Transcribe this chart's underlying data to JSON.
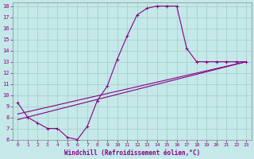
{
  "xlabel": "Windchill (Refroidissement éolien,°C)",
  "bg_color": "#c5e8e8",
  "grid_color": "#a8d0d0",
  "line_color": "#880088",
  "xlim": [
    -0.5,
    23.5
  ],
  "ylim": [
    6,
    18.3
  ],
  "xticks": [
    0,
    1,
    2,
    3,
    4,
    5,
    6,
    7,
    8,
    9,
    10,
    11,
    12,
    13,
    14,
    15,
    16,
    17,
    18,
    19,
    20,
    21,
    22,
    23
  ],
  "yticks": [
    6,
    7,
    8,
    9,
    10,
    11,
    12,
    13,
    14,
    15,
    16,
    17,
    18
  ],
  "curve1_x": [
    0,
    1,
    2,
    3,
    4,
    5,
    6,
    7,
    8,
    9,
    10,
    11,
    12,
    13,
    14,
    15,
    16,
    17,
    18,
    19,
    20,
    21,
    22,
    23
  ],
  "curve1_y": [
    9.3,
    8.0,
    7.5,
    7.0,
    7.0,
    6.2,
    6.0,
    7.2,
    9.5,
    10.8,
    13.2,
    15.3,
    17.2,
    17.8,
    18.0,
    18.0,
    18.0,
    14.2,
    13.0,
    13.0,
    13.0,
    13.0,
    13.0,
    13.0
  ],
  "line1_x": [
    0,
    23
  ],
  "line1_y": [
    8.3,
    13.0
  ],
  "line2_x": [
    0,
    23
  ],
  "line2_y": [
    7.8,
    13.0
  ]
}
